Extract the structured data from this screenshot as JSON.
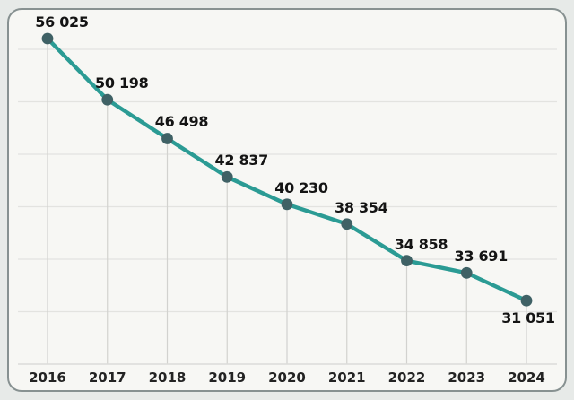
{
  "chart_data": {
    "type": "line",
    "title": "",
    "xlabel": "",
    "ylabel": "",
    "categories": [
      "2016",
      "2017",
      "2018",
      "2019",
      "2020",
      "2021",
      "2022",
      "2023",
      "2024"
    ],
    "values": [
      56025,
      50198,
      46498,
      42837,
      40230,
      38354,
      34858,
      33691,
      31051
    ],
    "value_labels": [
      "56 025",
      "50 198",
      "46 498",
      "42 837",
      "40 230",
      "38 354",
      "34 858",
      "33 691",
      "31 051"
    ],
    "ylim": [
      25000,
      57500
    ],
    "gridline_step": 5000,
    "grid": "horizontal-gridlines-plus-vertical-drop-lines",
    "legend": "none",
    "markers": "filled-circle",
    "last_label_position": "below-point",
    "colors": {
      "line": "#2b9b94",
      "marker": "#3f6165",
      "value_label_text": "#141414",
      "axis_tick_text": "#232323",
      "h_gridline": "#e3e3e0",
      "drop_line": "#d2d2cf",
      "baseline": "#dcdcd9",
      "card_background": "#f7f7f4",
      "card_border": "#879191",
      "page_background": "#e7eae8"
    }
  }
}
